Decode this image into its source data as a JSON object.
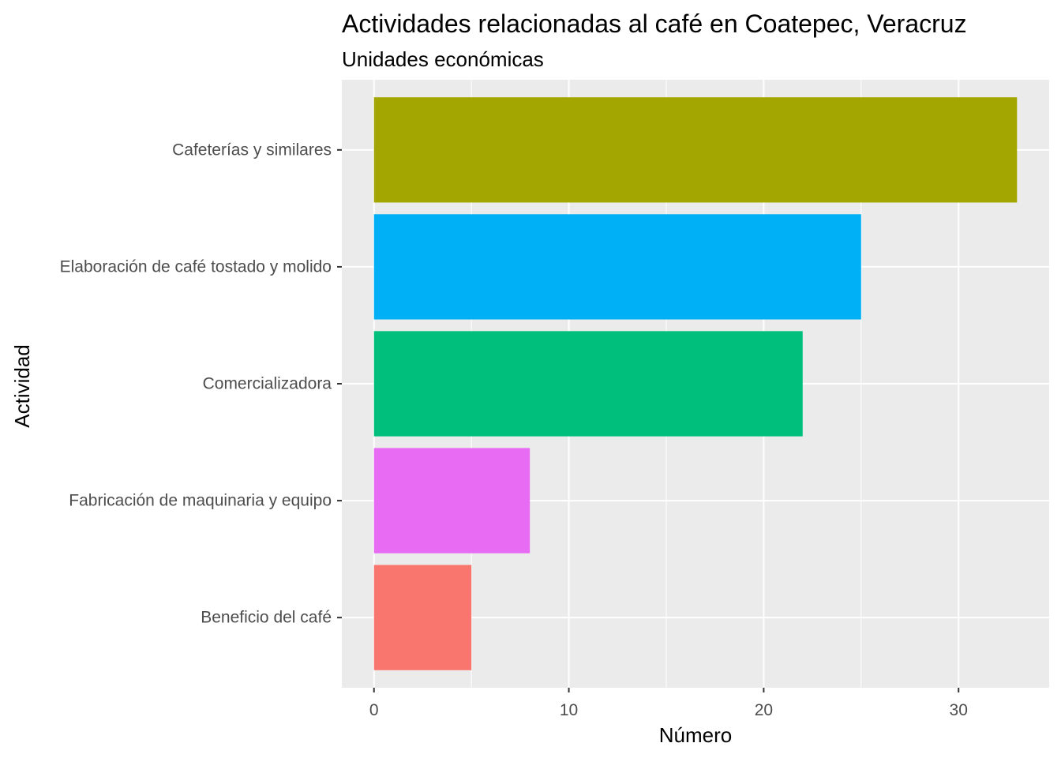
{
  "chart_data": {
    "type": "bar",
    "orientation": "horizontal",
    "title": "Actividades relacionadas al café en Coatepec, Veracruz",
    "subtitle": "Unidades económicas",
    "xlabel": "Número",
    "ylabel": "Actividad",
    "categories": [
      "Cafeterías y similares",
      "Elaboración de café tostado y molido",
      "Comercializadora",
      "Fabricación de maquinaria y equipo",
      "Beneficio del café"
    ],
    "values": [
      33,
      25,
      22,
      8,
      5
    ],
    "colors": [
      "#A3A500",
      "#00B0F6",
      "#00BF7D",
      "#E76BF3",
      "#F8766D"
    ],
    "xlim": [
      -1.65,
      34.65
    ],
    "xticks": [
      0,
      10,
      20,
      30
    ],
    "xtick_labels": [
      "0",
      "10",
      "20",
      "30"
    ],
    "grid": true,
    "panel_background": "#EBEBEB",
    "grid_color": "#FFFFFF",
    "legend": "none"
  }
}
